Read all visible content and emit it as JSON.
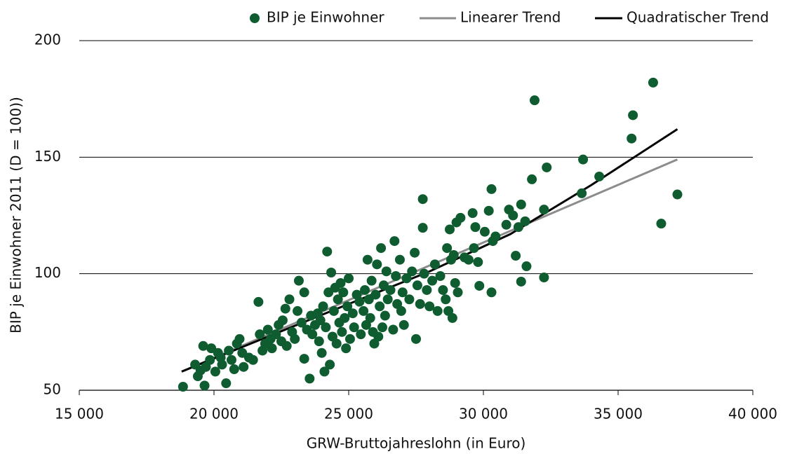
{
  "chart_data": {
    "type": "scatter",
    "x_label": "GRW-Bruttojahreslohn (in Euro)",
    "y_label": "BIP je Einwohner 2011 (D = 100))",
    "xlim": [
      15000,
      40000
    ],
    "xticks": [
      {
        "value": 15000,
        "label": "15 000"
      },
      {
        "value": 20000,
        "label": "20 000"
      },
      {
        "value": 25000,
        "label": "25 000"
      },
      {
        "value": 30000,
        "label": "30 000"
      },
      {
        "value": 35000,
        "label": "35 000"
      },
      {
        "value": 40000,
        "label": "40 000"
      }
    ],
    "ylim": [
      50,
      200
    ],
    "yticks": [
      50,
      100,
      150,
      200
    ],
    "grid": true,
    "legend": "top",
    "series": [
      {
        "name": "BIP je Einwohner",
        "type": "scatter",
        "color": "#0e5c2f",
        "x": [
          18850,
          19650,
          20450,
          19300,
          19400,
          19500,
          19600,
          19700,
          19850,
          19900,
          20050,
          20150,
          20250,
          20300,
          20550,
          20650,
          20750,
          20850,
          20950,
          21050,
          21100,
          21300,
          21450,
          21700,
          21650,
          21800,
          21900,
          22000,
          22100,
          22150,
          22300,
          22400,
          22500,
          22550,
          22650,
          22700,
          22800,
          22900,
          23000,
          23100,
          23150,
          23250,
          23350,
          23350,
          23450,
          23550,
          23600,
          23650,
          23750,
          23850,
          23900,
          23950,
          24000,
          24050,
          24100,
          24150,
          24200,
          24250,
          24300,
          24350,
          24400,
          24450,
          24500,
          24550,
          24600,
          24650,
          24700,
          24750,
          24800,
          24850,
          24900,
          24950,
          25000,
          25050,
          25150,
          25200,
          25300,
          25400,
          25450,
          25550,
          25600,
          25650,
          25700,
          25750,
          25800,
          25850,
          25900,
          25950,
          26000,
          26050,
          26150,
          26200,
          26250,
          26300,
          26350,
          26400,
          26450,
          26550,
          26650,
          26700,
          26750,
          26800,
          26900,
          26950,
          27000,
          27050,
          27150,
          27250,
          27350,
          27450,
          27500,
          27550,
          27650,
          27750,
          27750,
          27800,
          27900,
          28000,
          28100,
          28200,
          28300,
          28400,
          28500,
          28600,
          28650,
          28700,
          28750,
          28800,
          28850,
          28950,
          29000,
          29050,
          29150,
          29300,
          29450,
          29600,
          29650,
          29700,
          29850,
          29800,
          30050,
          30300,
          30300,
          30350,
          30450,
          30850,
          30950,
          31100,
          31200,
          31300,
          31400,
          31400,
          31550,
          31600,
          31800,
          31900,
          32250,
          32250,
          32350,
          33650,
          33700,
          34300,
          35500,
          35550,
          36300,
          36600,
          37200,
          30200,
          28900,
          26100
        ],
        "values": [
          51.5,
          52,
          53,
          61,
          56,
          58.5,
          69,
          60,
          63,
          68,
          58,
          66,
          64,
          61,
          67,
          63,
          59,
          70,
          72,
          66,
          60,
          64,
          63,
          74,
          87.9,
          67,
          70,
          76,
          72,
          68,
          74,
          78,
          71,
          80,
          85,
          69,
          89,
          75,
          72,
          84,
          97,
          79,
          92,
          63.5,
          76,
          55,
          82,
          74,
          78,
          83,
          71,
          80,
          66,
          86,
          58,
          77,
          109.5,
          92,
          61,
          100.5,
          73,
          84,
          94,
          70,
          89,
          79,
          96,
          75,
          92,
          81,
          68,
          86,
          98,
          72,
          83,
          77,
          91,
          88,
          74,
          84,
          93,
          78,
          106,
          89,
          81,
          97,
          75,
          70,
          91,
          104,
          86,
          111,
          77,
          95,
          82,
          101,
          89,
          93,
          76,
          114,
          99,
          87,
          106,
          84,
          92,
          78,
          98,
          89,
          101,
          109,
          72,
          95,
          87,
          132,
          119.7,
          100,
          93,
          86,
          97,
          104,
          84,
          99,
          93,
          89,
          111,
          84,
          119,
          106,
          81,
          96,
          122,
          92,
          124,
          107,
          106,
          126,
          111,
          120,
          94.8,
          105,
          118,
          136.3,
          92,
          114,
          116,
          121,
          127.5,
          125,
          107.7,
          120,
          129.7,
          96.6,
          122.5,
          103.2,
          140.5,
          174.4,
          127.5,
          98.4,
          145.6,
          134.5,
          149,
          141.7,
          158,
          168,
          182,
          121.5,
          134,
          127,
          108,
          73
        ]
      },
      {
        "name": "Linearer Trend",
        "type": "line",
        "color": "#8c8c8c",
        "x": [
          18800,
          37200
        ],
        "values": [
          58,
          149
        ]
      },
      {
        "name": "Quadratischer Trend",
        "type": "line",
        "color": "#000000",
        "x": [
          18800,
          22000,
          25000,
          28000,
          31000,
          34000,
          37200
        ],
        "values": [
          58,
          73,
          87,
          101,
          117,
          138,
          162
        ]
      }
    ]
  }
}
